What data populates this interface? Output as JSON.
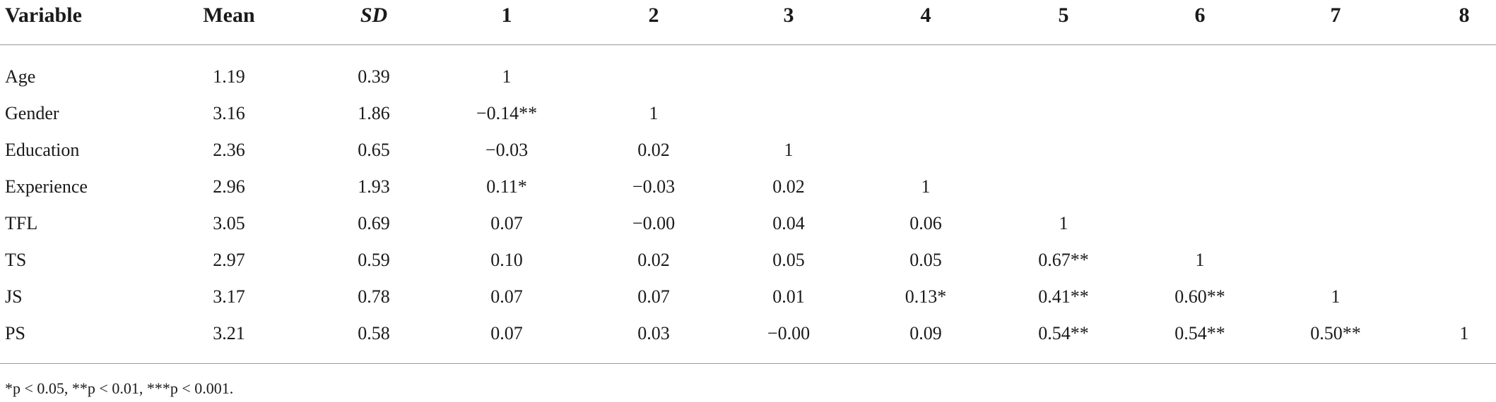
{
  "table": {
    "headers": [
      "Variable",
      "Mean",
      "SD",
      "1",
      "2",
      "3",
      "4",
      "5",
      "6",
      "7",
      "8"
    ],
    "rows": [
      [
        "Age",
        "1.19",
        "0.39",
        "1",
        "",
        "",
        "",
        "",
        "",
        "",
        ""
      ],
      [
        "Gender",
        "3.16",
        "1.86",
        "−0.14**",
        "1",
        "",
        "",
        "",
        "",
        "",
        ""
      ],
      [
        "Education",
        "2.36",
        "0.65",
        "−0.03",
        "0.02",
        "1",
        "",
        "",
        "",
        "",
        ""
      ],
      [
        "Experience",
        "2.96",
        "1.93",
        "0.11*",
        "−0.03",
        "0.02",
        "1",
        "",
        "",
        "",
        ""
      ],
      [
        "TFL",
        "3.05",
        "0.69",
        "0.07",
        "−0.00",
        "0.04",
        "0.06",
        "1",
        "",
        "",
        ""
      ],
      [
        "TS",
        "2.97",
        "0.59",
        "0.10",
        "0.02",
        "0.05",
        "0.05",
        "0.67**",
        "1",
        "",
        ""
      ],
      [
        "JS",
        "3.17",
        "0.78",
        "0.07",
        "0.07",
        "0.01",
        "0.13*",
        "0.41**",
        "0.60**",
        "1",
        ""
      ],
      [
        "PS",
        "3.21",
        "0.58",
        "0.07",
        "0.03",
        "−0.00",
        "0.09",
        "0.54**",
        "0.54**",
        "0.50**",
        "1"
      ]
    ],
    "footnote": "*p < 0.05, **p < 0.01, ***p < 0.001."
  }
}
